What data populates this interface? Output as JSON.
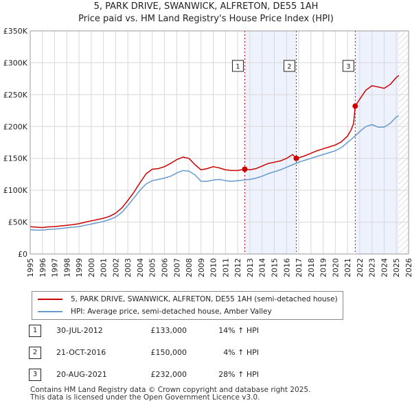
{
  "title": {
    "line1": "5, PARK DRIVE, SWANWICK, ALFRETON, DE55 1AH",
    "line2": "Price paid vs. HM Land Registry's House Price Index (HPI)"
  },
  "colors": {
    "red": "#cc0000",
    "blue": "#6699cc",
    "shade": "#eef2fc",
    "grid": "#d8d8d8"
  },
  "chart_data": {
    "type": "line",
    "title": "Price paid vs. HM Land Registry's House Price Index (HPI)",
    "xlabel": "",
    "ylabel": "",
    "xlim": [
      1995,
      2026
    ],
    "ylim": [
      0,
      350000
    ],
    "x_ticks": [
      1995,
      1996,
      1997,
      1998,
      1999,
      2000,
      2001,
      2002,
      2003,
      2004,
      2005,
      2006,
      2007,
      2008,
      2009,
      2010,
      2011,
      2012,
      2013,
      2014,
      2015,
      2016,
      2017,
      2018,
      2019,
      2020,
      2021,
      2022,
      2023,
      2024,
      2025,
      2026
    ],
    "y_ticks": [
      {
        "value": 0,
        "label": "£0"
      },
      {
        "value": 50000,
        "label": "£50K"
      },
      {
        "value": 100000,
        "label": "£100K"
      },
      {
        "value": 150000,
        "label": "£150K"
      },
      {
        "value": 200000,
        "label": "£200K"
      },
      {
        "value": 250000,
        "label": "£250K"
      },
      {
        "value": 300000,
        "label": "£300K"
      },
      {
        "value": 350000,
        "label": "£350K"
      }
    ],
    "shaded_ranges": [
      {
        "from": 2012.58,
        "to": 2016.8
      },
      {
        "from": 2021.63,
        "to": 2025.2
      }
    ],
    "hatched_from": 2025.2,
    "series": [
      {
        "name": "5, PARK DRIVE, SWANWICK, ALFRETON, DE55 1AH (semi-detached house)",
        "color": "#cc0000",
        "points": [
          [
            1995.0,
            43000
          ],
          [
            1995.5,
            42000
          ],
          [
            1996.0,
            41500
          ],
          [
            1996.5,
            42500
          ],
          [
            1997.0,
            43000
          ],
          [
            1997.5,
            44000
          ],
          [
            1998.0,
            45000
          ],
          [
            1998.5,
            46000
          ],
          [
            1999.0,
            47500
          ],
          [
            1999.5,
            50000
          ],
          [
            2000.0,
            52000
          ],
          [
            2000.5,
            54000
          ],
          [
            2001.0,
            56000
          ],
          [
            2001.5,
            59000
          ],
          [
            2002.0,
            64000
          ],
          [
            2002.5,
            72000
          ],
          [
            2003.0,
            84000
          ],
          [
            2003.5,
            97000
          ],
          [
            2004.0,
            112000
          ],
          [
            2004.5,
            126000
          ],
          [
            2005.0,
            133000
          ],
          [
            2005.5,
            134000
          ],
          [
            2006.0,
            137000
          ],
          [
            2006.5,
            142000
          ],
          [
            2007.0,
            148000
          ],
          [
            2007.5,
            152000
          ],
          [
            2008.0,
            150000
          ],
          [
            2008.5,
            140000
          ],
          [
            2009.0,
            132000
          ],
          [
            2009.5,
            134000
          ],
          [
            2010.0,
            137000
          ],
          [
            2010.5,
            135000
          ],
          [
            2011.0,
            132000
          ],
          [
            2011.5,
            131000
          ],
          [
            2012.0,
            131000
          ],
          [
            2012.58,
            133000
          ],
          [
            2013.0,
            132000
          ],
          [
            2013.5,
            134000
          ],
          [
            2014.0,
            138000
          ],
          [
            2014.5,
            142000
          ],
          [
            2015.0,
            144000
          ],
          [
            2015.5,
            146000
          ],
          [
            2016.0,
            150000
          ],
          [
            2016.5,
            156000
          ],
          [
            2016.8,
            150000
          ],
          [
            2017.0,
            151000
          ],
          [
            2017.5,
            154000
          ],
          [
            2018.0,
            158000
          ],
          [
            2018.5,
            162000
          ],
          [
            2019.0,
            165000
          ],
          [
            2019.5,
            168000
          ],
          [
            2020.0,
            171000
          ],
          [
            2020.5,
            176000
          ],
          [
            2021.0,
            185000
          ],
          [
            2021.3,
            195000
          ],
          [
            2021.5,
            205000
          ],
          [
            2021.63,
            232000
          ],
          [
            2022.0,
            243000
          ],
          [
            2022.5,
            257000
          ],
          [
            2023.0,
            264000
          ],
          [
            2023.5,
            262000
          ],
          [
            2024.0,
            260000
          ],
          [
            2024.5,
            266000
          ],
          [
            2025.0,
            277000
          ],
          [
            2025.2,
            280000
          ]
        ]
      },
      {
        "name": "HPI: Average price, semi-detached house, Amber Valley",
        "color": "#6699cc",
        "points": [
          [
            1995.0,
            38000
          ],
          [
            1995.5,
            37500
          ],
          [
            1996.0,
            37500
          ],
          [
            1996.5,
            38500
          ],
          [
            1997.0,
            39000
          ],
          [
            1997.5,
            40000
          ],
          [
            1998.0,
            41000
          ],
          [
            1998.5,
            42000
          ],
          [
            1999.0,
            43000
          ],
          [
            1999.5,
            45000
          ],
          [
            2000.0,
            47000
          ],
          [
            2000.5,
            49000
          ],
          [
            2001.0,
            51000
          ],
          [
            2001.5,
            54000
          ],
          [
            2002.0,
            58000
          ],
          [
            2002.5,
            65000
          ],
          [
            2003.0,
            76000
          ],
          [
            2003.5,
            88000
          ],
          [
            2004.0,
            100000
          ],
          [
            2004.5,
            110000
          ],
          [
            2005.0,
            115000
          ],
          [
            2005.5,
            117000
          ],
          [
            2006.0,
            119000
          ],
          [
            2006.5,
            122000
          ],
          [
            2007.0,
            127000
          ],
          [
            2007.5,
            131000
          ],
          [
            2008.0,
            130000
          ],
          [
            2008.5,
            124000
          ],
          [
            2009.0,
            114000
          ],
          [
            2009.5,
            114000
          ],
          [
            2010.0,
            116000
          ],
          [
            2010.5,
            117000
          ],
          [
            2011.0,
            115000
          ],
          [
            2011.5,
            114000
          ],
          [
            2012.0,
            115000
          ],
          [
            2012.5,
            116000
          ],
          [
            2013.0,
            117000
          ],
          [
            2013.5,
            119000
          ],
          [
            2014.0,
            122000
          ],
          [
            2014.5,
            126000
          ],
          [
            2015.0,
            129000
          ],
          [
            2015.5,
            132000
          ],
          [
            2016.0,
            136000
          ],
          [
            2016.5,
            140000
          ],
          [
            2017.0,
            144000
          ],
          [
            2017.5,
            147000
          ],
          [
            2018.0,
            150000
          ],
          [
            2018.5,
            153000
          ],
          [
            2019.0,
            156000
          ],
          [
            2019.5,
            159000
          ],
          [
            2020.0,
            162000
          ],
          [
            2020.5,
            167000
          ],
          [
            2021.0,
            175000
          ],
          [
            2021.5,
            183000
          ],
          [
            2022.0,
            192000
          ],
          [
            2022.5,
            200000
          ],
          [
            2023.0,
            203000
          ],
          [
            2023.5,
            199000
          ],
          [
            2024.0,
            199000
          ],
          [
            2024.5,
            205000
          ],
          [
            2025.0,
            215000
          ],
          [
            2025.2,
            217000
          ]
        ]
      }
    ],
    "sales": [
      {
        "label": "1",
        "x": 2012.58,
        "price": 133000
      },
      {
        "label": "2",
        "x": 2016.8,
        "price": 150000
      },
      {
        "label": "3",
        "x": 2021.63,
        "price": 232000
      }
    ]
  },
  "legend": [
    {
      "label": "5, PARK DRIVE, SWANWICK, ALFRETON, DE55 1AH (semi-detached house)",
      "color": "#cc0000"
    },
    {
      "label": "HPI: Average price, semi-detached house, Amber Valley",
      "color": "#6699cc"
    }
  ],
  "transactions": [
    {
      "num": "1",
      "date": "30-JUL-2012",
      "price": "£133,000",
      "pct": "14% ↑ HPI"
    },
    {
      "num": "2",
      "date": "21-OCT-2016",
      "price": "£150,000",
      "pct": "4% ↑ HPI"
    },
    {
      "num": "3",
      "date": "20-AUG-2021",
      "price": "£232,000",
      "pct": "28% ↑ HPI"
    }
  ],
  "footer": {
    "line1": "Contains HM Land Registry data © Crown copyright and database right 2025.",
    "line2": "This data is licensed under the Open Government Licence v3.0."
  }
}
